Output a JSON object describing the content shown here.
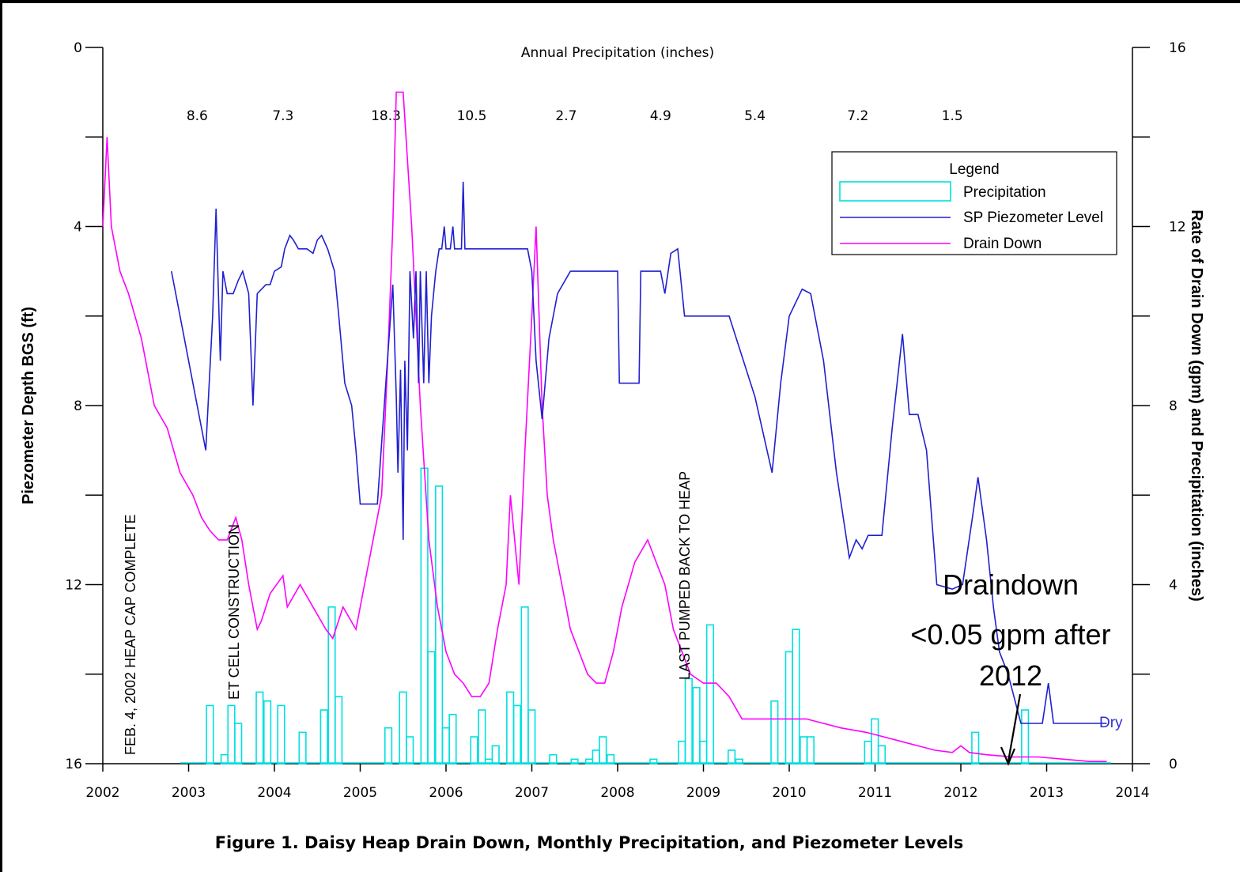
{
  "chart_data": {
    "type": "line",
    "caption": "Figure 1. Daisy Heap Drain Down, Monthly Precipitation, and Piezometer Levels",
    "top_label": "Annual Precipitation (inches)",
    "ylabel_left": "Piezometer Depth BGS (ft)",
    "ylabel_right": "Rate of Drain Down (gpm) and Precipitation (inches)",
    "xlim": [
      2002,
      2014
    ],
    "ylim_left": [
      16,
      0
    ],
    "ylim_right": [
      0,
      16
    ],
    "x_ticks": [
      "2002",
      "2003",
      "2004",
      "2005",
      "2006",
      "2007",
      "2008",
      "2009",
      "2010",
      "2011",
      "2012",
      "2013",
      "2014"
    ],
    "y_left_ticks": [
      "0",
      "4",
      "8",
      "12",
      "16"
    ],
    "y_right_ticks": [
      "16",
      "12",
      "8",
      "4",
      "0"
    ],
    "annual_precipitation": [
      {
        "x": 2003.1,
        "label": "8.6"
      },
      {
        "x": 2004.1,
        "label": "7.3"
      },
      {
        "x": 2005.3,
        "label": "18.3"
      },
      {
        "x": 2006.3,
        "label": "10.5"
      },
      {
        "x": 2007.4,
        "label": "2.7"
      },
      {
        "x": 2008.5,
        "label": "4.9"
      },
      {
        "x": 2009.6,
        "label": "5.4"
      },
      {
        "x": 2010.8,
        "label": "7.2"
      },
      {
        "x": 2011.9,
        "label": "1.5"
      }
    ],
    "legend": {
      "title": "Legend",
      "items": [
        "Precipitation",
        "SP Piezometer Level",
        "Drain Down"
      ],
      "position": "top-right"
    },
    "colors": {
      "precipitation": "#00e0e0",
      "piezometer": "#2020d0",
      "drain_down": "#ff00ff",
      "dry_label": "#3030d0"
    },
    "annotations": [
      {
        "text": "FEB. 4, 2002 HEAP CAP COMPLETE",
        "x": 2002.4,
        "y_right": 0.2
      },
      {
        "text": "ET CELL CONSTRUCTION",
        "x": 2003.6,
        "y_right": 1.5
      },
      {
        "text": "LAST PUMPED BACK TO HEAP",
        "x": 2008.7,
        "y_right": 2
      }
    ],
    "dry_label": {
      "text": "Dry",
      "x": 2012.8,
      "y_left": 15.2
    },
    "callout": {
      "lines": [
        "Draindown",
        "<0.05 gpm after",
        "2012"
      ],
      "arrow_to": {
        "x": 2012.5,
        "y_right": 0
      }
    },
    "series": [
      {
        "name": "Precipitation",
        "axis": "right",
        "bar_width_years": 0.0833,
        "points": [
          [
            2003.25,
            1.3
          ],
          [
            2003.42,
            0.2
          ],
          [
            2003.5,
            1.3
          ],
          [
            2003.58,
            0.9
          ],
          [
            2003.83,
            1.6
          ],
          [
            2003.92,
            1.4
          ],
          [
            2004.08,
            1.3
          ],
          [
            2004.33,
            0.7
          ],
          [
            2004.58,
            1.2
          ],
          [
            2004.67,
            3.5
          ],
          [
            2004.75,
            1.5
          ],
          [
            2005.33,
            0.8
          ],
          [
            2005.5,
            1.6
          ],
          [
            2005.58,
            0.6
          ],
          [
            2005.75,
            6.6
          ],
          [
            2005.83,
            2.5
          ],
          [
            2005.92,
            6.2
          ],
          [
            2006.0,
            0.8
          ],
          [
            2006.08,
            1.1
          ],
          [
            2006.33,
            0.6
          ],
          [
            2006.42,
            1.2
          ],
          [
            2006.5,
            0.1
          ],
          [
            2006.58,
            0.4
          ],
          [
            2006.75,
            1.6
          ],
          [
            2006.83,
            1.3
          ],
          [
            2006.92,
            3.5
          ],
          [
            2007.0,
            1.2
          ],
          [
            2007.25,
            0.2
          ],
          [
            2007.5,
            0.1
          ],
          [
            2007.67,
            0.1
          ],
          [
            2007.75,
            0.3
          ],
          [
            2007.83,
            0.6
          ],
          [
            2007.92,
            0.2
          ],
          [
            2008.42,
            0.1
          ],
          [
            2008.75,
            0.5
          ],
          [
            2008.83,
            1.9
          ],
          [
            2008.92,
            1.7
          ],
          [
            2009.0,
            0.5
          ],
          [
            2009.08,
            3.1
          ],
          [
            2009.33,
            0.3
          ],
          [
            2009.42,
            0.1
          ],
          [
            2009.83,
            1.4
          ],
          [
            2010.0,
            2.5
          ],
          [
            2010.08,
            3.0
          ],
          [
            2010.17,
            0.6
          ],
          [
            2010.25,
            0.6
          ],
          [
            2010.92,
            0.5
          ],
          [
            2011.0,
            1.0
          ],
          [
            2011.08,
            0.4
          ],
          [
            2012.17,
            0.7
          ],
          [
            2012.75,
            1.2
          ]
        ]
      },
      {
        "name": "SP Piezometer Level",
        "axis": "left",
        "points": [
          [
            2002.8,
            5.0
          ],
          [
            2003.2,
            9.0
          ],
          [
            2003.28,
            6.0
          ],
          [
            2003.32,
            3.6
          ],
          [
            2003.37,
            7.0
          ],
          [
            2003.4,
            5.0
          ],
          [
            2003.45,
            5.5
          ],
          [
            2003.52,
            5.5
          ],
          [
            2003.58,
            5.2
          ],
          [
            2003.63,
            5.0
          ],
          [
            2003.7,
            5.5
          ],
          [
            2003.75,
            8.0
          ],
          [
            2003.8,
            5.5
          ],
          [
            2003.9,
            5.3
          ],
          [
            2003.95,
            5.3
          ],
          [
            2004.0,
            5.0
          ],
          [
            2004.08,
            4.9
          ],
          [
            2004.12,
            4.5
          ],
          [
            2004.18,
            4.2
          ],
          [
            2004.22,
            4.3
          ],
          [
            2004.28,
            4.5
          ],
          [
            2004.38,
            4.5
          ],
          [
            2004.45,
            4.6
          ],
          [
            2004.5,
            4.3
          ],
          [
            2004.55,
            4.2
          ],
          [
            2004.62,
            4.5
          ],
          [
            2004.7,
            5.0
          ],
          [
            2004.75,
            6.0
          ],
          [
            2004.82,
            7.5
          ],
          [
            2004.9,
            8.0
          ],
          [
            2004.95,
            9.0
          ],
          [
            2005.0,
            10.2
          ],
          [
            2005.2,
            10.2
          ],
          [
            2005.28,
            8.0
          ],
          [
            2005.38,
            5.3
          ],
          [
            2005.42,
            7.8
          ],
          [
            2005.44,
            9.5
          ],
          [
            2005.47,
            7.2
          ],
          [
            2005.5,
            11.0
          ],
          [
            2005.52,
            7.0
          ],
          [
            2005.55,
            9.0
          ],
          [
            2005.58,
            5.0
          ],
          [
            2005.62,
            6.5
          ],
          [
            2005.65,
            5.0
          ],
          [
            2005.68,
            7.5
          ],
          [
            2005.7,
            5.0
          ],
          [
            2005.74,
            7.5
          ],
          [
            2005.77,
            5.0
          ],
          [
            2005.8,
            7.5
          ],
          [
            2005.83,
            6.0
          ],
          [
            2005.88,
            5.0
          ],
          [
            2005.92,
            4.5
          ],
          [
            2005.95,
            4.5
          ],
          [
            2005.98,
            4.0
          ],
          [
            2006.0,
            4.5
          ],
          [
            2006.05,
            4.5
          ],
          [
            2006.08,
            4.0
          ],
          [
            2006.1,
            4.5
          ],
          [
            2006.18,
            4.5
          ],
          [
            2006.2,
            3.0
          ],
          [
            2006.22,
            4.5
          ],
          [
            2006.95,
            4.5
          ],
          [
            2007.0,
            5.0
          ],
          [
            2007.05,
            7.0
          ],
          [
            2007.12,
            8.3
          ],
          [
            2007.2,
            6.5
          ],
          [
            2007.3,
            5.5
          ],
          [
            2007.45,
            5.0
          ],
          [
            2008.0,
            5.0
          ],
          [
            2008.02,
            7.5
          ],
          [
            2008.25,
            7.5
          ],
          [
            2008.27,
            5.0
          ],
          [
            2008.5,
            5.0
          ],
          [
            2008.55,
            5.5
          ],
          [
            2008.62,
            4.6
          ],
          [
            2008.7,
            4.5
          ],
          [
            2008.78,
            6.0
          ],
          [
            2009.3,
            6.0
          ],
          [
            2009.6,
            7.8
          ],
          [
            2009.8,
            9.5
          ],
          [
            2009.9,
            7.5
          ],
          [
            2010.0,
            6.0
          ],
          [
            2010.15,
            5.4
          ],
          [
            2010.25,
            5.5
          ],
          [
            2010.4,
            7.0
          ],
          [
            2010.55,
            9.5
          ],
          [
            2010.7,
            11.4
          ],
          [
            2010.78,
            11.0
          ],
          [
            2010.85,
            11.2
          ],
          [
            2010.92,
            10.9
          ],
          [
            2011.08,
            10.9
          ],
          [
            2011.2,
            8.5
          ],
          [
            2011.32,
            6.4
          ],
          [
            2011.4,
            8.2
          ],
          [
            2011.5,
            8.2
          ],
          [
            2011.6,
            9.0
          ],
          [
            2011.72,
            12.0
          ],
          [
            2011.9,
            12.1
          ],
          [
            2012.02,
            12.0
          ],
          [
            2012.15,
            10.3
          ],
          [
            2012.2,
            9.6
          ],
          [
            2012.3,
            11.0
          ],
          [
            2012.38,
            12.5
          ],
          [
            2012.45,
            13.5
          ],
          [
            2012.55,
            14.0
          ],
          [
            2012.7,
            15.1
          ],
          [
            2012.95,
            15.1
          ],
          [
            2013.02,
            14.2
          ],
          [
            2013.08,
            15.1
          ],
          [
            2013.7,
            15.1
          ]
        ]
      },
      {
        "name": "Drain Down",
        "axis": "right",
        "points": [
          [
            2002.0,
            12.0
          ],
          [
            2002.05,
            14.0
          ],
          [
            2002.1,
            12.0
          ],
          [
            2002.2,
            11.0
          ],
          [
            2002.3,
            10.5
          ],
          [
            2002.45,
            9.5
          ],
          [
            2002.6,
            8.0
          ],
          [
            2002.75,
            7.5
          ],
          [
            2002.9,
            6.5
          ],
          [
            2003.05,
            6.0
          ],
          [
            2003.15,
            5.5
          ],
          [
            2003.25,
            5.2
          ],
          [
            2003.35,
            5.0
          ],
          [
            2003.45,
            5.0
          ],
          [
            2003.55,
            5.5
          ],
          [
            2003.62,
            5.0
          ],
          [
            2003.7,
            4.0
          ],
          [
            2003.8,
            3.0
          ],
          [
            2003.85,
            3.2
          ],
          [
            2003.95,
            3.8
          ],
          [
            2004.1,
            4.2
          ],
          [
            2004.15,
            3.5
          ],
          [
            2004.3,
            4.0
          ],
          [
            2004.45,
            3.5
          ],
          [
            2004.6,
            3.0
          ],
          [
            2004.68,
            2.8
          ],
          [
            2004.8,
            3.5
          ],
          [
            2004.95,
            3.0
          ],
          [
            2005.05,
            4.0
          ],
          [
            2005.15,
            5.0
          ],
          [
            2005.25,
            6.0
          ],
          [
            2005.32,
            9.0
          ],
          [
            2005.38,
            12.0
          ],
          [
            2005.42,
            15.0
          ],
          [
            2005.5,
            15.0
          ],
          [
            2005.6,
            12.0
          ],
          [
            2005.7,
            8.0
          ],
          [
            2005.8,
            5.0
          ],
          [
            2005.9,
            3.5
          ],
          [
            2006.0,
            2.5
          ],
          [
            2006.1,
            2.0
          ],
          [
            2006.2,
            1.8
          ],
          [
            2006.3,
            1.5
          ],
          [
            2006.4,
            1.5
          ],
          [
            2006.5,
            1.8
          ],
          [
            2006.6,
            3.0
          ],
          [
            2006.7,
            4.0
          ],
          [
            2006.75,
            6.0
          ],
          [
            2006.8,
            5.0
          ],
          [
            2006.85,
            4.0
          ],
          [
            2006.92,
            7.0
          ],
          [
            2007.0,
            10.0
          ],
          [
            2007.05,
            12.0
          ],
          [
            2007.12,
            8.0
          ],
          [
            2007.18,
            6.0
          ],
          [
            2007.25,
            5.0
          ],
          [
            2007.35,
            4.0
          ],
          [
            2007.45,
            3.0
          ],
          [
            2007.55,
            2.5
          ],
          [
            2007.65,
            2.0
          ],
          [
            2007.75,
            1.8
          ],
          [
            2007.85,
            1.8
          ],
          [
            2007.95,
            2.5
          ],
          [
            2008.05,
            3.5
          ],
          [
            2008.2,
            4.5
          ],
          [
            2008.35,
            5.0
          ],
          [
            2008.45,
            4.5
          ],
          [
            2008.55,
            4.0
          ],
          [
            2008.65,
            3.0
          ],
          [
            2008.75,
            2.5
          ],
          [
            2008.85,
            2.0
          ],
          [
            2009.0,
            1.8
          ],
          [
            2009.15,
            1.8
          ],
          [
            2009.3,
            1.5
          ],
          [
            2009.45,
            1.0
          ],
          [
            2009.6,
            1.0
          ],
          [
            2009.8,
            1.0
          ],
          [
            2010.2,
            1.0
          ],
          [
            2010.6,
            0.8
          ],
          [
            2010.9,
            0.7
          ],
          [
            2011.1,
            0.6
          ],
          [
            2011.3,
            0.5
          ],
          [
            2011.5,
            0.4
          ],
          [
            2011.7,
            0.3
          ],
          [
            2011.9,
            0.25
          ],
          [
            2012.0,
            0.4
          ],
          [
            2012.1,
            0.25
          ],
          [
            2012.3,
            0.2
          ],
          [
            2012.6,
            0.15
          ],
          [
            2012.9,
            0.15
          ],
          [
            2013.2,
            0.1
          ],
          [
            2013.5,
            0.05
          ],
          [
            2013.7,
            0.05
          ]
        ]
      }
    ]
  }
}
